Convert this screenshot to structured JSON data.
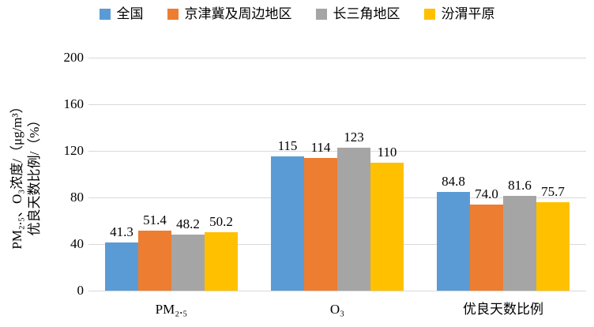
{
  "chart_data": {
    "type": "bar",
    "title": "",
    "categories": [
      "PM₂.₅",
      "O₃",
      "优良天数比例"
    ],
    "series": [
      {
        "name": "全国",
        "color": "#5B9BD5",
        "values": [
          41.3,
          115,
          84.8
        ],
        "labels": [
          "41.3",
          "115",
          "84.8"
        ]
      },
      {
        "name": "京津冀及周边地区",
        "color": "#ED7D31",
        "values": [
          51.4,
          114,
          74.0
        ],
        "labels": [
          "51.4",
          "114",
          "74.0"
        ]
      },
      {
        "name": "长三角地区",
        "color": "#A5A5A5",
        "values": [
          48.2,
          123,
          81.6
        ],
        "labels": [
          "48.2",
          "123",
          "81.6"
        ]
      },
      {
        "name": "汾渭平原",
        "color": "#FFC000",
        "values": [
          50.2,
          110,
          75.7
        ],
        "labels": [
          "50.2",
          "110",
          "75.7"
        ]
      }
    ],
    "ylabel_line1": "PM₂.₅、O₃浓度/（μg/m³）",
    "ylabel_line2": "优良天数比例/（%）",
    "xlabel": "",
    "ylim": [
      0,
      200
    ],
    "yticks": [
      0,
      40,
      80,
      120,
      160,
      200
    ],
    "grid": true,
    "grid_color": "#D9D9D9",
    "legend_position": "top"
  }
}
